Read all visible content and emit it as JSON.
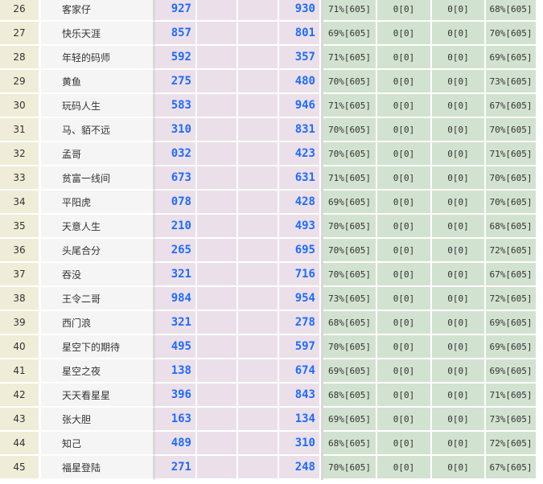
{
  "rows": [
    {
      "rank": "26",
      "name": "客家仔",
      "a": "927",
      "d": "930",
      "g1": "71%[605]",
      "g2": "0[0]",
      "g3": "0[0]",
      "g4": "68%[605]"
    },
    {
      "rank": "27",
      "name": "快乐天涯",
      "a": "857",
      "d": "801",
      "g1": "69%[605]",
      "g2": "0[0]",
      "g3": "0[0]",
      "g4": "70%[605]"
    },
    {
      "rank": "28",
      "name": "年轻的码师",
      "a": "592",
      "d": "357",
      "g1": "71%[605]",
      "g2": "0[0]",
      "g3": "0[0]",
      "g4": "69%[605]"
    },
    {
      "rank": "29",
      "name": "黄鱼",
      "a": "275",
      "d": "480",
      "g1": "70%[605]",
      "g2": "0[0]",
      "g3": "0[0]",
      "g4": "73%[605]"
    },
    {
      "rank": "30",
      "name": "玩码人生",
      "a": "583",
      "d": "946",
      "g1": "71%[605]",
      "g2": "0[0]",
      "g3": "0[0]",
      "g4": "67%[605]"
    },
    {
      "rank": "31",
      "name": "马、貊不远",
      "a": "310",
      "d": "831",
      "g1": "70%[605]",
      "g2": "0[0]",
      "g3": "0[0]",
      "g4": "70%[605]"
    },
    {
      "rank": "32",
      "name": "孟哥",
      "a": "032",
      "d": "423",
      "g1": "70%[605]",
      "g2": "0[0]",
      "g3": "0[0]",
      "g4": "71%[605]"
    },
    {
      "rank": "33",
      "name": "贫富一线间",
      "a": "673",
      "d": "631",
      "g1": "71%[605]",
      "g2": "0[0]",
      "g3": "0[0]",
      "g4": "70%[605]"
    },
    {
      "rank": "34",
      "name": "平阳虎",
      "a": "078",
      "d": "428",
      "g1": "69%[605]",
      "g2": "0[0]",
      "g3": "0[0]",
      "g4": "70%[605]"
    },
    {
      "rank": "35",
      "name": "天意人生",
      "a": "210",
      "d": "493",
      "g1": "70%[605]",
      "g2": "0[0]",
      "g3": "0[0]",
      "g4": "68%[605]"
    },
    {
      "rank": "36",
      "name": "头尾合分",
      "a": "265",
      "d": "695",
      "g1": "70%[605]",
      "g2": "0[0]",
      "g3": "0[0]",
      "g4": "72%[605]"
    },
    {
      "rank": "37",
      "name": "吞没",
      "a": "321",
      "d": "716",
      "g1": "70%[605]",
      "g2": "0[0]",
      "g3": "0[0]",
      "g4": "67%[605]"
    },
    {
      "rank": "38",
      "name": "王令二哥",
      "a": "984",
      "d": "954",
      "g1": "73%[605]",
      "g2": "0[0]",
      "g3": "0[0]",
      "g4": "72%[605]"
    },
    {
      "rank": "39",
      "name": "西门浪",
      "a": "321",
      "d": "278",
      "g1": "68%[605]",
      "g2": "0[0]",
      "g3": "0[0]",
      "g4": "69%[605]"
    },
    {
      "rank": "40",
      "name": "星空下的期待",
      "a": "495",
      "d": "597",
      "g1": "70%[605]",
      "g2": "0[0]",
      "g3": "0[0]",
      "g4": "69%[605]"
    },
    {
      "rank": "41",
      "name": "星空之夜",
      "a": "138",
      "d": "674",
      "g1": "69%[605]",
      "g2": "0[0]",
      "g3": "0[0]",
      "g4": "69%[605]"
    },
    {
      "rank": "42",
      "name": "天天看星星",
      "a": "396",
      "d": "843",
      "g1": "68%[605]",
      "g2": "0[0]",
      "g3": "0[0]",
      "g4": "71%[605]"
    },
    {
      "rank": "43",
      "name": "张大胆",
      "a": "163",
      "d": "134",
      "g1": "69%[605]",
      "g2": "0[0]",
      "g3": "0[0]",
      "g4": "73%[605]"
    },
    {
      "rank": "44",
      "name": "知己",
      "a": "489",
      "d": "310",
      "g1": "68%[605]",
      "g2": "0[0]",
      "g3": "0[0]",
      "g4": "72%[605]"
    },
    {
      "rank": "45",
      "name": "福星登陆",
      "a": "271",
      "d": "248",
      "g1": "70%[605]",
      "g2": "0[0]",
      "g3": "0[0]",
      "g4": "67%[605]"
    }
  ]
}
